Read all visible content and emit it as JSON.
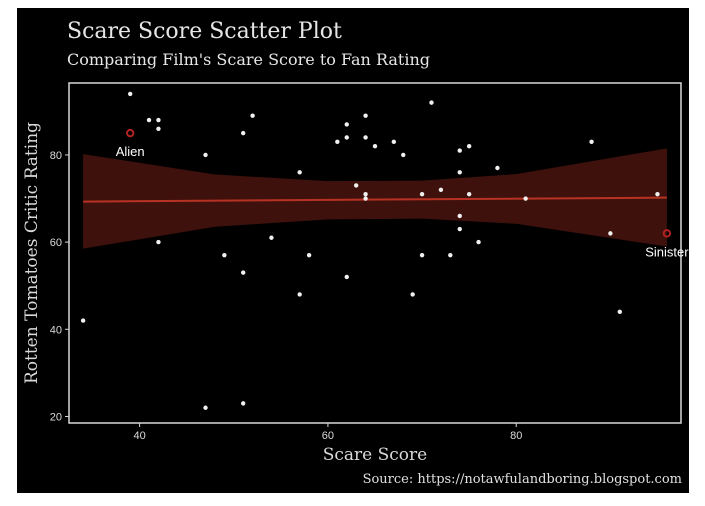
{
  "chart_data": {
    "type": "scatter",
    "title": "Scare Score Scatter Plot",
    "subtitle": "Comparing Film's Scare Score to Fan Rating",
    "xlabel": "Scare Score",
    "ylabel": "Rotten Tomatoes Critic Rating",
    "caption": "Source: https://notawfulandboring.blogspot.com",
    "xlim": [
      32.5,
      97.5
    ],
    "ylim": [
      18.5,
      96.5
    ],
    "x_ticks": [
      40,
      60,
      80
    ],
    "y_ticks": [
      20,
      40,
      60,
      80
    ],
    "grid": false,
    "colors": {
      "background": "#000000",
      "points": "#f0f0f0",
      "highlight": "#b22222",
      "fit_line": "#b83224",
      "ribbon": "#4a140e",
      "panel_border": "#d8d8d8"
    },
    "points": [
      {
        "x": 34,
        "y": 42
      },
      {
        "x": 39,
        "y": 94
      },
      {
        "x": 41,
        "y": 88
      },
      {
        "x": 42,
        "y": 88
      },
      {
        "x": 42,
        "y": 86
      },
      {
        "x": 42,
        "y": 60
      },
      {
        "x": 47,
        "y": 80
      },
      {
        "x": 47,
        "y": 22
      },
      {
        "x": 49,
        "y": 57
      },
      {
        "x": 51,
        "y": 85
      },
      {
        "x": 51,
        "y": 53
      },
      {
        "x": 51,
        "y": 23
      },
      {
        "x": 52,
        "y": 89
      },
      {
        "x": 54,
        "y": 61
      },
      {
        "x": 57,
        "y": 76
      },
      {
        "x": 57,
        "y": 48
      },
      {
        "x": 58,
        "y": 57
      },
      {
        "x": 61,
        "y": 83
      },
      {
        "x": 62,
        "y": 87
      },
      {
        "x": 62,
        "y": 84
      },
      {
        "x": 62,
        "y": 52
      },
      {
        "x": 63,
        "y": 73
      },
      {
        "x": 64,
        "y": 89
      },
      {
        "x": 64,
        "y": 84
      },
      {
        "x": 64,
        "y": 71
      },
      {
        "x": 64,
        "y": 70
      },
      {
        "x": 65,
        "y": 82
      },
      {
        "x": 67,
        "y": 83
      },
      {
        "x": 68,
        "y": 80
      },
      {
        "x": 69,
        "y": 48
      },
      {
        "x": 70,
        "y": 71
      },
      {
        "x": 70,
        "y": 57
      },
      {
        "x": 71,
        "y": 92
      },
      {
        "x": 72,
        "y": 72
      },
      {
        "x": 73,
        "y": 57
      },
      {
        "x": 74,
        "y": 81
      },
      {
        "x": 74,
        "y": 76
      },
      {
        "x": 74,
        "y": 66
      },
      {
        "x": 74,
        "y": 63
      },
      {
        "x": 75,
        "y": 82
      },
      {
        "x": 75,
        "y": 71
      },
      {
        "x": 76,
        "y": 60
      },
      {
        "x": 78,
        "y": 77
      },
      {
        "x": 81,
        "y": 70
      },
      {
        "x": 88,
        "y": 83
      },
      {
        "x": 90,
        "y": 62
      },
      {
        "x": 91,
        "y": 44
      },
      {
        "x": 95,
        "y": 71
      }
    ],
    "highlighted": [
      {
        "label": "Alien",
        "x": 39,
        "y": 85
      },
      {
        "label": "Sinister",
        "x": 96,
        "y": 62
      }
    ],
    "trend": {
      "type": "linear",
      "x": [
        34,
        96
      ],
      "y": [
        69.3,
        70.2
      ],
      "band": {
        "x": [
          34,
          48,
          60,
          70,
          80,
          96
        ],
        "lower": [
          58.5,
          63.5,
          65.2,
          65.4,
          64.2,
          59.0
        ],
        "upper": [
          80.2,
          75.5,
          74.0,
          74.1,
          75.6,
          81.5
        ]
      }
    }
  }
}
